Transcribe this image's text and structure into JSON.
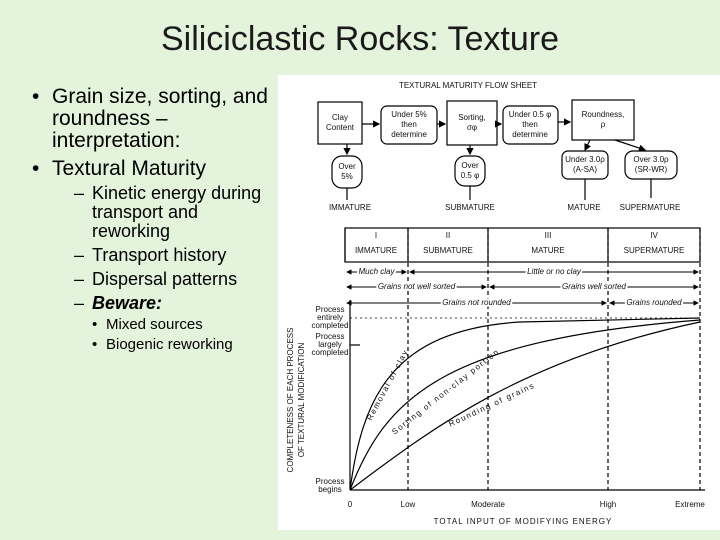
{
  "title": "Siliciclastic Rocks: Texture",
  "bullets": [
    {
      "text": "Grain size, sorting, and roundness – interpretation:"
    },
    {
      "text": "Textural Maturity",
      "sub": [
        {
          "text": "Kinetic energy during transport and reworking"
        },
        {
          "text": "Transport history"
        },
        {
          "text": "Dispersal patterns"
        },
        {
          "text": "Beware:",
          "sub": [
            "Mixed sources",
            "Biogenic reworking"
          ]
        }
      ]
    }
  ],
  "figure": {
    "flow_title": "TEXTURAL MATURITY FLOW SHEET",
    "flow_boxes": [
      [
        "Clay",
        "Content"
      ],
      [
        "Under 5%",
        "then",
        "determine"
      ],
      [
        "Sorting,",
        "σφ"
      ],
      [
        "Under 0.5 φ",
        "then",
        "determine"
      ],
      [
        "Roundness,",
        "ρ"
      ]
    ],
    "down_boxes": [
      [
        "Over",
        "5%"
      ],
      [
        "Over",
        "0.5 φ"
      ],
      [
        "Under 3.0ρ",
        "(A-SA)"
      ],
      [
        "Over 3.0ρ",
        "(SR-WR)"
      ]
    ],
    "outcomes": [
      "IMMATURE",
      "SUBMATURE",
      "MATURE",
      "SUPERMATURE"
    ],
    "stages": [
      {
        "numeral": "I",
        "name": "IMMATURE"
      },
      {
        "numeral": "II",
        "name": "SUBMATURE"
      },
      {
        "numeral": "III",
        "name": "MATURE"
      },
      {
        "numeral": "IV",
        "name": "SUPERMATURE"
      }
    ],
    "ranges": [
      "Much clay",
      "Little or no clay",
      "Grains not well sorted",
      "Grains well sorted",
      "Grains not rounded",
      "Grains rounded"
    ],
    "y_labels": [
      [
        "Process",
        "entirely",
        "completed"
      ],
      [
        "Process",
        "largely",
        "completed"
      ],
      [
        "Process",
        "begins"
      ]
    ],
    "y_title": [
      "COMPLETENESS OF EACH PROCESS",
      "OF TEXTURAL MODIFICATION"
    ],
    "curves": [
      "Removal of clay",
      "Sorting of non-clay portion",
      "Rounding of grains"
    ],
    "x_labels": [
      "0",
      "Low",
      "Moderate",
      "High",
      "Extreme"
    ],
    "x_title": "TOTAL INPUT OF MODIFYING ENERGY"
  }
}
